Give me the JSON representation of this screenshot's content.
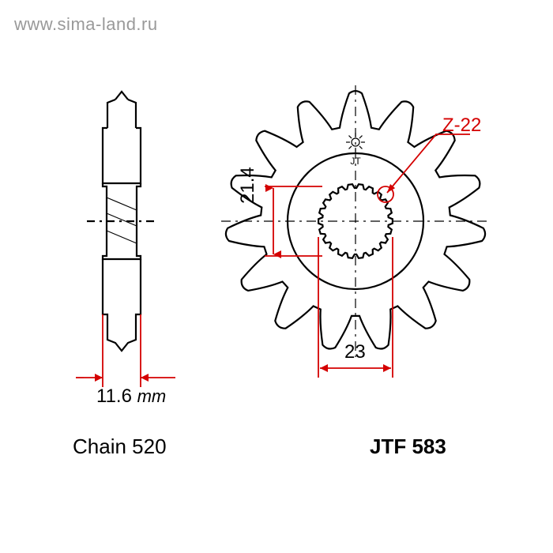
{
  "watermark": "www.sima-land.ru",
  "chain_label": "Chain 520",
  "part_label": "JTF 583",
  "side": {
    "width_mm": "11.6",
    "unit": "mm"
  },
  "front": {
    "bore_dia": "21.4",
    "pcd": "23",
    "spline_label": "Z-22",
    "teeth": 15,
    "splines": 22
  },
  "colors": {
    "outline": "#000000",
    "dimension": "#d40000",
    "background": "#ffffff"
  },
  "stroke": {
    "outline_w": 2.2,
    "dim_w": 1.8
  }
}
